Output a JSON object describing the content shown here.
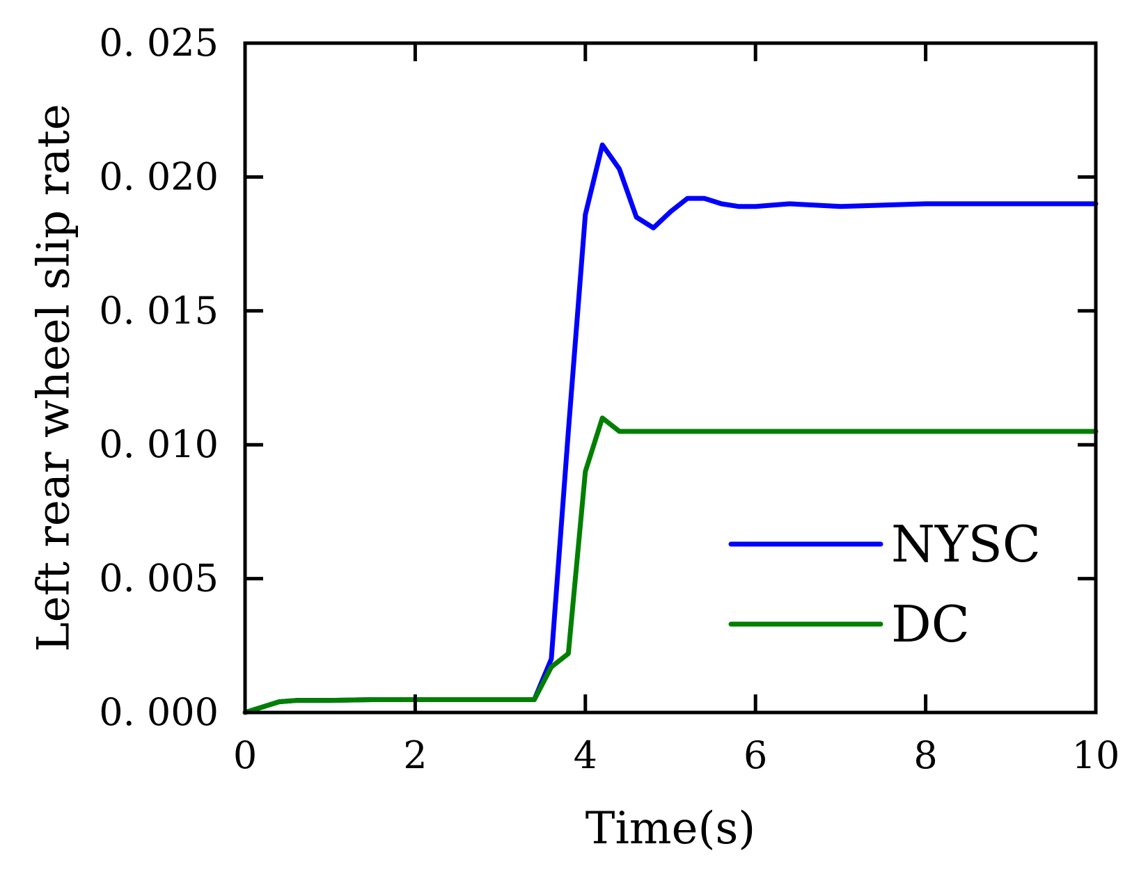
{
  "chart_data": {
    "type": "line",
    "title": "",
    "xlabel": "Time(s)",
    "ylabel": "Left rear wheel slip rate",
    "xlim": [
      0,
      10
    ],
    "ylim": [
      0,
      0.025
    ],
    "x_ticks": [
      0,
      2,
      4,
      6,
      8,
      10
    ],
    "x_tick_labels": [
      "0",
      "2",
      "4",
      "6",
      "8",
      "10"
    ],
    "y_ticks": [
      0,
      0.005,
      0.01,
      0.015,
      0.02,
      0.025
    ],
    "y_tick_labels": [
      "0. 000",
      "0. 005",
      "0. 010",
      "0. 015",
      "0. 020",
      "0. 025"
    ],
    "grid": false,
    "legend_position": "bottom-right",
    "series": [
      {
        "name": "NYSC",
        "color": "#0000ff",
        "x": [
          0,
          0.2,
          0.4,
          0.6,
          1.0,
          1.5,
          2.0,
          2.5,
          3.0,
          3.4,
          3.6,
          3.8,
          4.0,
          4.2,
          4.4,
          4.6,
          4.8,
          5.0,
          5.2,
          5.4,
          5.6,
          5.8,
          6.0,
          6.4,
          7.0,
          8.0,
          9.0,
          10.0
        ],
        "y": [
          0,
          0.0002,
          0.0004,
          0.00045,
          0.00045,
          0.00048,
          0.00048,
          0.00048,
          0.00048,
          0.00048,
          0.002,
          0.0105,
          0.0186,
          0.0212,
          0.0203,
          0.0185,
          0.0181,
          0.0187,
          0.0192,
          0.0192,
          0.019,
          0.0189,
          0.0189,
          0.019,
          0.0189,
          0.019,
          0.019,
          0.019
        ]
      },
      {
        "name": "DC",
        "color": "#007f00",
        "x": [
          0,
          0.2,
          0.4,
          0.6,
          1.0,
          1.5,
          2.0,
          2.5,
          3.0,
          3.4,
          3.6,
          3.8,
          4.0,
          4.2,
          4.4,
          5.0,
          6.0,
          7.0,
          8.0,
          9.0,
          10.0
        ],
        "y": [
          0,
          0.0002,
          0.0004,
          0.00045,
          0.00045,
          0.00048,
          0.00048,
          0.00048,
          0.00048,
          0.00048,
          0.0017,
          0.0022,
          0.009,
          0.011,
          0.0105,
          0.0105,
          0.0105,
          0.0105,
          0.0105,
          0.0105,
          0.0105
        ]
      }
    ]
  }
}
